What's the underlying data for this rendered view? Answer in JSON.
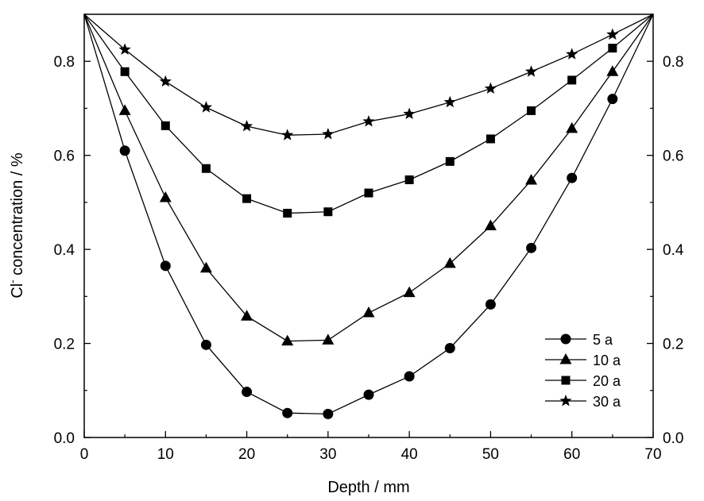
{
  "chart_data": {
    "type": "line",
    "xlabel": "Depth / mm",
    "ylabel": "Cl",
    "ylabel_superscript": "-",
    "ylabel_rest": " concentration / %",
    "xlim": [
      0,
      70
    ],
    "ylim": [
      0.0,
      0.9
    ],
    "xticks": [
      "0",
      "10",
      "20",
      "30",
      "40",
      "50",
      "60",
      "70"
    ],
    "yticks": [
      "0.0",
      "0.2",
      "0.4",
      "0.6",
      "0.8"
    ],
    "right_axis_mirror": true,
    "grid": false,
    "legend_position": "bottom-right",
    "x": [
      0,
      5,
      10,
      15,
      20,
      25,
      30,
      35,
      40,
      45,
      50,
      55,
      60,
      65,
      70
    ],
    "series": [
      {
        "name": "5 a",
        "marker": "circle",
        "values": [
          0.9,
          0.61,
          0.365,
          0.197,
          0.097,
          0.052,
          0.05,
          0.091,
          0.13,
          0.19,
          0.283,
          0.403,
          0.552,
          0.72,
          0.9
        ]
      },
      {
        "name": "10 a",
        "marker": "triangle",
        "values": [
          0.9,
          0.695,
          0.51,
          0.36,
          0.258,
          0.205,
          0.207,
          0.265,
          0.308,
          0.37,
          0.45,
          0.547,
          0.657,
          0.778,
          0.9
        ]
      },
      {
        "name": "20 a",
        "marker": "square",
        "values": [
          0.9,
          0.778,
          0.663,
          0.572,
          0.508,
          0.477,
          0.48,
          0.52,
          0.548,
          0.587,
          0.635,
          0.695,
          0.76,
          0.828,
          0.9
        ]
      },
      {
        "name": "30 a",
        "marker": "star",
        "values": [
          0.9,
          0.825,
          0.757,
          0.702,
          0.662,
          0.643,
          0.645,
          0.672,
          0.688,
          0.713,
          0.742,
          0.778,
          0.815,
          0.857,
          0.9
        ]
      }
    ]
  }
}
